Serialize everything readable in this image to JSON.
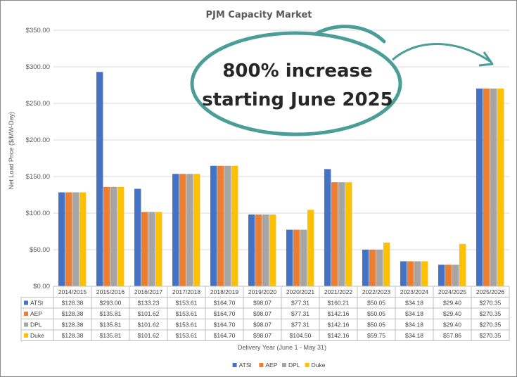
{
  "chart_data": {
    "type": "bar",
    "title": "PJM Capacity Market",
    "xlabel": "Delivery Year (June 1 - May 31)",
    "ylabel": "Net Load Price ($/MW-Day)",
    "ylim": [
      0,
      350
    ],
    "yticks": [
      "$0.00",
      "$50.00",
      "$100.00",
      "$150.00",
      "$200.00",
      "$250.00",
      "$300.00",
      "$350.00"
    ],
    "categories": [
      "2014/2015",
      "2015/2016",
      "2016/2017",
      "2017/2018",
      "2018/2019",
      "2019/2020",
      "2020/2021",
      "2021/2022",
      "2022/2023",
      "2023/2024",
      "2024/2025",
      "2025/2026"
    ],
    "series": [
      {
        "name": "ATSI",
        "color": "#4472c4",
        "values": [
          128.38,
          293.0,
          133.23,
          153.61,
          164.7,
          98.07,
          77.31,
          160.21,
          50.05,
          34.18,
          29.4,
          270.35
        ],
        "labels": [
          "$128.38",
          "$293.00",
          "$133.23",
          "$153.61",
          "$164.70",
          "$98.07",
          "$77.31",
          "$160.21",
          "$50.05",
          "$34.18",
          "$29.40",
          "$270.35"
        ]
      },
      {
        "name": "AEP",
        "color": "#ed7d31",
        "values": [
          128.38,
          135.81,
          101.62,
          153.61,
          164.7,
          98.07,
          77.31,
          142.16,
          50.05,
          34.18,
          29.4,
          270.35
        ],
        "labels": [
          "$128.38",
          "$135.81",
          "$101.62",
          "$153.61",
          "$164.70",
          "$98.07",
          "$77.31",
          "$142.16",
          "$50.05",
          "$34.18",
          "$29.40",
          "$270.35"
        ]
      },
      {
        "name": "DPL",
        "color": "#a5a5a5",
        "values": [
          128.38,
          135.81,
          101.62,
          153.61,
          164.7,
          98.07,
          77.31,
          142.16,
          50.05,
          34.18,
          29.4,
          270.35
        ],
        "labels": [
          "$128.38",
          "$135.81",
          "$101.62",
          "$153.61",
          "$164.70",
          "$98.07",
          "$77.31",
          "$142.16",
          "$50.05",
          "$34.18",
          "$29.40",
          "$270.35"
        ]
      },
      {
        "name": "Duke",
        "color": "#ffc000",
        "values": [
          128.38,
          135.81,
          101.62,
          153.61,
          164.7,
          98.07,
          104.5,
          142.16,
          59.75,
          34.18,
          57.86,
          270.35
        ],
        "labels": [
          "$128.38",
          "$135.81",
          "$101.62",
          "$153.61",
          "$164.70",
          "$98.07",
          "$104.50",
          "$142.16",
          "$59.75",
          "$34.18",
          "$57.86",
          "$270.35"
        ]
      }
    ],
    "grid": true,
    "legend": "bottom",
    "data_table": true
  },
  "callout": {
    "line1": "800% increase",
    "line2": "starting June 2025",
    "color": "#4a9e97"
  }
}
